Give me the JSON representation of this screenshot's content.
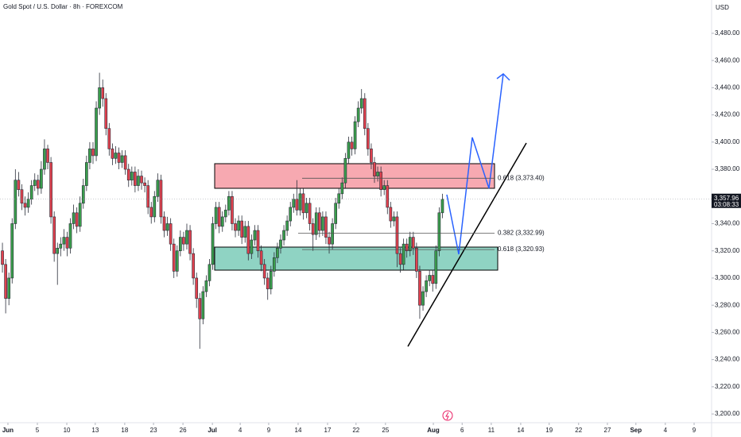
{
  "chart_data": {
    "type": "candlestick",
    "title": "Gold Spot / U.S. Dollar · 8h · FOREXCOM",
    "currency": "USD",
    "up_color": "#3a9e4c",
    "down_color": "#e0414e",
    "grid": false,
    "ylim": [
      3193.6,
      3504.5
    ],
    "yticks": [
      {
        "value": 3200,
        "label": "3,200.00"
      },
      {
        "value": 3220,
        "label": "3,220.00"
      },
      {
        "value": 3240,
        "label": "3,240.00"
      },
      {
        "value": 3260,
        "label": "3,260.00"
      },
      {
        "value": 3280,
        "label": "3,280.00"
      },
      {
        "value": 3300,
        "label": "3,300.00"
      },
      {
        "value": 3320,
        "label": "3,320.00"
      },
      {
        "value": 3340,
        "label": "3,340.00"
      },
      {
        "value": 3380,
        "label": "3,380.00"
      },
      {
        "value": 3400,
        "label": "3,400.00"
      },
      {
        "value": 3420,
        "label": "3,420.00"
      },
      {
        "value": 3440,
        "label": "3,440.00"
      },
      {
        "value": 3460,
        "label": "3,460.00"
      },
      {
        "value": 3480,
        "label": "3,480.00"
      }
    ],
    "xlim": [
      -0.75,
      219.2
    ],
    "xticks": [
      {
        "value": 1.7,
        "label": "Jun"
      },
      {
        "value": 10.8,
        "label": "5"
      },
      {
        "value": 19.9,
        "label": "10"
      },
      {
        "value": 28.7,
        "label": "13"
      },
      {
        "value": 37.8,
        "label": "18"
      },
      {
        "value": 46.7,
        "label": "23"
      },
      {
        "value": 55.8,
        "label": "26"
      },
      {
        "value": 64.9,
        "label": "Jul"
      },
      {
        "value": 73.5,
        "label": "4"
      },
      {
        "value": 82.3,
        "label": "9"
      },
      {
        "value": 91.4,
        "label": "14"
      },
      {
        "value": 100.5,
        "label": "17"
      },
      {
        "value": 109.3,
        "label": "22"
      },
      {
        "value": 118.4,
        "label": "25"
      },
      {
        "value": 133.2,
        "label": "Aug"
      },
      {
        "value": 142.1,
        "label": "6"
      },
      {
        "value": 151.1,
        "label": "11"
      },
      {
        "value": 160.2,
        "label": "14"
      },
      {
        "value": 169,
        "label": "19"
      },
      {
        "value": 178.1,
        "label": "22"
      },
      {
        "value": 187,
        "label": "27"
      },
      {
        "value": 195.8,
        "label": "Sep"
      },
      {
        "value": 204.9,
        "label": "4"
      },
      {
        "value": 213.8,
        "label": "9"
      }
    ],
    "last_price": {
      "value": 3357.96,
      "label": "3,357.96"
    },
    "countdown": "03:08:33",
    "fib_levels": [
      {
        "value": 3373.4,
        "label": "0.618 (3,373.40)"
      },
      {
        "value": 3332.99,
        "label": "0.382 (3,332.99)"
      },
      {
        "value": 3320.93,
        "label": "0.618 (3,320.93)"
      }
    ],
    "candles": [
      [
        3320,
        3326,
        3304,
        3310
      ],
      [
        3310,
        3314,
        3274,
        3285
      ],
      [
        3285,
        3304,
        3280,
        3300
      ],
      [
        3300,
        3344,
        3296,
        3340
      ],
      [
        3340,
        3380,
        3336,
        3372
      ],
      [
        3372,
        3378,
        3360,
        3365
      ],
      [
        3365,
        3369,
        3350,
        3355
      ],
      [
        3355,
        3360,
        3346,
        3352
      ],
      [
        3352,
        3363,
        3348,
        3358
      ],
      [
        3358,
        3372,
        3354,
        3368
      ],
      [
        3368,
        3377,
        3364,
        3372
      ],
      [
        3372,
        3376,
        3361,
        3366
      ],
      [
        3366,
        3386,
        3362,
        3380
      ],
      [
        3380,
        3402,
        3376,
        3395
      ],
      [
        3395,
        3398,
        3380,
        3385
      ],
      [
        3385,
        3389,
        3340,
        3345
      ],
      [
        3345,
        3349,
        3312,
        3318
      ],
      [
        3318,
        3326,
        3295,
        3322
      ],
      [
        3322,
        3330,
        3316,
        3325
      ],
      [
        3325,
        3336,
        3320,
        3330
      ],
      [
        3330,
        3334,
        3316,
        3322
      ],
      [
        3322,
        3344,
        3318,
        3340
      ],
      [
        3340,
        3354,
        3336,
        3348
      ],
      [
        3348,
        3352,
        3333,
        3338
      ],
      [
        3338,
        3360,
        3334,
        3355
      ],
      [
        3355,
        3373,
        3351,
        3368
      ],
      [
        3368,
        3390,
        3364,
        3385
      ],
      [
        3385,
        3400,
        3380,
        3395
      ],
      [
        3395,
        3400,
        3384,
        3390
      ],
      [
        3390,
        3430,
        3386,
        3425
      ],
      [
        3425,
        3451,
        3420,
        3440
      ],
      [
        3440,
        3446,
        3426,
        3432
      ],
      [
        3432,
        3436,
        3405,
        3410
      ],
      [
        3410,
        3414,
        3390,
        3395
      ],
      [
        3395,
        3399,
        3383,
        3388
      ],
      [
        3388,
        3397,
        3384,
        3392
      ],
      [
        3392,
        3396,
        3380,
        3385
      ],
      [
        3385,
        3394,
        3381,
        3390
      ],
      [
        3390,
        3394,
        3376,
        3380
      ],
      [
        3380,
        3384,
        3367,
        3372
      ],
      [
        3372,
        3382,
        3368,
        3378
      ],
      [
        3378,
        3382,
        3363,
        3368
      ],
      [
        3368,
        3380,
        3364,
        3375
      ],
      [
        3375,
        3379,
        3365,
        3370
      ],
      [
        3370,
        3374,
        3363,
        3368
      ],
      [
        3368,
        3372,
        3347,
        3352
      ],
      [
        3352,
        3356,
        3340,
        3345
      ],
      [
        3345,
        3364,
        3341,
        3360
      ],
      [
        3360,
        3377,
        3356,
        3372
      ],
      [
        3372,
        3376,
        3340,
        3345
      ],
      [
        3345,
        3349,
        3330,
        3335
      ],
      [
        3335,
        3345,
        3331,
        3340
      ],
      [
        3340,
        3344,
        3320,
        3325
      ],
      [
        3325,
        3329,
        3300,
        3305
      ],
      [
        3305,
        3324,
        3301,
        3320
      ],
      [
        3320,
        3335,
        3316,
        3330
      ],
      [
        3330,
        3334,
        3320,
        3325
      ],
      [
        3325,
        3340,
        3321,
        3335
      ],
      [
        3335,
        3339,
        3313,
        3318
      ],
      [
        3318,
        3322,
        3295,
        3300
      ],
      [
        3300,
        3304,
        3278,
        3285
      ],
      [
        3285,
        3289,
        3248,
        3270
      ],
      [
        3270,
        3294,
        3266,
        3290
      ],
      [
        3290,
        3302,
        3286,
        3298
      ],
      [
        3298,
        3314,
        3294,
        3310
      ],
      [
        3310,
        3345,
        3306,
        3340
      ],
      [
        3340,
        3356,
        3336,
        3352
      ],
      [
        3352,
        3356,
        3333,
        3338
      ],
      [
        3338,
        3349,
        3334,
        3345
      ],
      [
        3345,
        3354,
        3341,
        3350
      ],
      [
        3350,
        3364,
        3346,
        3360
      ],
      [
        3360,
        3364,
        3335,
        3340
      ],
      [
        3340,
        3344,
        3330,
        3335
      ],
      [
        3335,
        3346,
        3331,
        3342
      ],
      [
        3342,
        3346,
        3325,
        3330
      ],
      [
        3330,
        3342,
        3326,
        3338
      ],
      [
        3338,
        3342,
        3313,
        3318
      ],
      [
        3318,
        3332,
        3314,
        3328
      ],
      [
        3328,
        3339,
        3324,
        3335
      ],
      [
        3335,
        3339,
        3315,
        3320
      ],
      [
        3320,
        3324,
        3305,
        3310
      ],
      [
        3310,
        3314,
        3295,
        3300
      ],
      [
        3300,
        3304,
        3284,
        3292
      ],
      [
        3292,
        3309,
        3288,
        3305
      ],
      [
        3305,
        3319,
        3301,
        3315
      ],
      [
        3315,
        3326,
        3311,
        3322
      ],
      [
        3322,
        3332,
        3318,
        3328
      ],
      [
        3328,
        3339,
        3324,
        3335
      ],
      [
        3335,
        3346,
        3331,
        3342
      ],
      [
        3342,
        3356,
        3338,
        3352
      ],
      [
        3352,
        3362,
        3348,
        3358
      ],
      [
        3358,
        3372,
        3346,
        3350
      ],
      [
        3350,
        3366,
        3346,
        3362
      ],
      [
        3362,
        3366,
        3343,
        3348
      ],
      [
        3348,
        3359,
        3344,
        3355
      ],
      [
        3355,
        3359,
        3335,
        3340
      ],
      [
        3340,
        3344,
        3320,
        3332
      ],
      [
        3332,
        3352,
        3328,
        3348
      ],
      [
        3348,
        3352,
        3330,
        3335
      ],
      [
        3335,
        3349,
        3331,
        3345
      ],
      [
        3345,
        3349,
        3325,
        3330
      ],
      [
        3330,
        3334,
        3318,
        3325
      ],
      [
        3325,
        3344,
        3321,
        3340
      ],
      [
        3340,
        3359,
        3336,
        3355
      ],
      [
        3355,
        3366,
        3351,
        3362
      ],
      [
        3362,
        3374,
        3358,
        3370
      ],
      [
        3370,
        3392,
        3366,
        3388
      ],
      [
        3388,
        3404,
        3384,
        3400
      ],
      [
        3400,
        3404,
        3390,
        3395
      ],
      [
        3395,
        3419,
        3391,
        3415
      ],
      [
        3415,
        3430,
        3411,
        3425
      ],
      [
        3425,
        3439,
        3421,
        3432
      ],
      [
        3432,
        3436,
        3405,
        3410
      ],
      [
        3410,
        3414,
        3390,
        3395
      ],
      [
        3395,
        3399,
        3380,
        3385
      ],
      [
        3385,
        3389,
        3370,
        3375
      ],
      [
        3375,
        3382,
        3371,
        3378
      ],
      [
        3378,
        3382,
        3360,
        3365
      ],
      [
        3365,
        3372,
        3361,
        3368
      ],
      [
        3368,
        3372,
        3347,
        3352
      ],
      [
        3352,
        3356,
        3337,
        3342
      ],
      [
        3342,
        3349,
        3338,
        3345
      ],
      [
        3345,
        3349,
        3308,
        3318
      ],
      [
        3318,
        3322,
        3304,
        3310
      ],
      [
        3310,
        3329,
        3306,
        3325
      ],
      [
        3325,
        3329,
        3315,
        3320
      ],
      [
        3320,
        3334,
        3316,
        3330
      ],
      [
        3330,
        3334,
        3317,
        3322
      ],
      [
        3322,
        3326,
        3300,
        3305
      ],
      [
        3305,
        3309,
        3270,
        3280
      ],
      [
        3280,
        3294,
        3276,
        3290
      ],
      [
        3290,
        3302,
        3286,
        3298
      ],
      [
        3298,
        3306,
        3294,
        3302
      ],
      [
        3302,
        3306,
        3290,
        3296
      ],
      [
        3296,
        3324,
        3292,
        3320
      ],
      [
        3320,
        3352,
        3316,
        3348
      ],
      [
        3348,
        3362,
        3344,
        3357.96
      ]
    ]
  }
}
